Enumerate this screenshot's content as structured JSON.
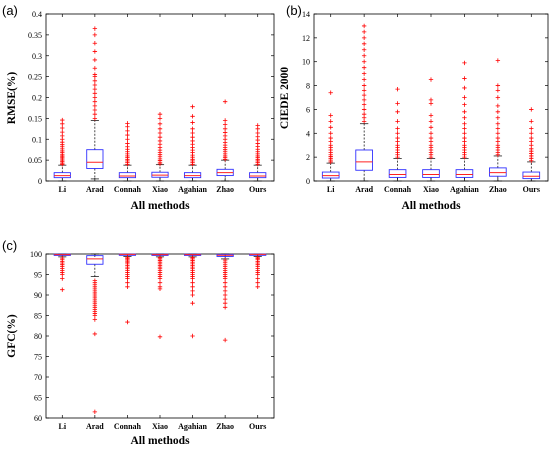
{
  "chart_data": [
    {
      "type": "box",
      "panel_label": "(a)",
      "ylabel": "RMSE(%)",
      "xlabel": "All methods",
      "categories": [
        "Li",
        "Arad",
        "Connah",
        "Xiao",
        "Agahian",
        "Zhao",
        "Ours"
      ],
      "ylim": [
        0,
        0.4
      ],
      "yticks": [
        0,
        0.05,
        0.1,
        0.15,
        0.2,
        0.25,
        0.3,
        0.35,
        0.4
      ],
      "ytick_labels": [
        "0",
        "0.05",
        "0.1",
        "0.15",
        "0.2",
        "0.25",
        "0.3",
        "0.35",
        "0.4"
      ],
      "boxes": [
        {
          "category": "Li",
          "q1": 0.008,
          "median": 0.013,
          "q3": 0.02,
          "whisker_low": 0.0,
          "whisker_high": 0.038,
          "outliers": [
            0.04,
            0.043,
            0.047,
            0.05,
            0.053,
            0.057,
            0.06,
            0.064,
            0.068,
            0.072,
            0.077,
            0.082,
            0.087,
            0.093,
            0.1,
            0.108,
            0.117,
            0.127,
            0.137,
            0.146
          ]
        },
        {
          "category": "Arad",
          "q1": 0.03,
          "median": 0.045,
          "q3": 0.075,
          "whisker_low": 0.005,
          "whisker_high": 0.145,
          "outliers": [
            0.15,
            0.16,
            0.17,
            0.18,
            0.19,
            0.2,
            0.21,
            0.22,
            0.23,
            0.24,
            0.25,
            0.255,
            0.27,
            0.29,
            0.31,
            0.33,
            0.35,
            0.365
          ]
        },
        {
          "category": "Connah",
          "q1": 0.008,
          "median": 0.012,
          "q3": 0.02,
          "whisker_low": 0.0,
          "whisker_high": 0.038,
          "outliers": [
            0.04,
            0.044,
            0.048,
            0.052,
            0.056,
            0.06,
            0.065,
            0.07,
            0.076,
            0.082,
            0.09,
            0.1,
            0.11,
            0.12,
            0.13,
            0.138
          ]
        },
        {
          "category": "Xiao",
          "q1": 0.009,
          "median": 0.014,
          "q3": 0.021,
          "whisker_low": 0.0,
          "whisker_high": 0.039,
          "outliers": [
            0.041,
            0.045,
            0.049,
            0.053,
            0.058,
            0.063,
            0.068,
            0.074,
            0.08,
            0.088,
            0.096,
            0.105,
            0.115,
            0.125,
            0.137,
            0.15,
            0.16
          ]
        },
        {
          "category": "Agahian",
          "q1": 0.008,
          "median": 0.013,
          "q3": 0.02,
          "whisker_low": 0.0,
          "whisker_high": 0.038,
          "outliers": [
            0.04,
            0.044,
            0.048,
            0.052,
            0.057,
            0.062,
            0.068,
            0.074,
            0.08,
            0.088,
            0.096,
            0.105,
            0.115,
            0.125,
            0.14,
            0.155,
            0.178
          ]
        },
        {
          "category": "Zhao",
          "q1": 0.013,
          "median": 0.02,
          "q3": 0.028,
          "whisker_low": 0.0,
          "whisker_high": 0.05,
          "outliers": [
            0.052,
            0.056,
            0.06,
            0.065,
            0.07,
            0.075,
            0.08,
            0.086,
            0.092,
            0.1,
            0.108,
            0.116,
            0.125,
            0.135,
            0.145,
            0.19
          ]
        },
        {
          "category": "Ours",
          "q1": 0.008,
          "median": 0.012,
          "q3": 0.02,
          "whisker_low": 0.0,
          "whisker_high": 0.038,
          "outliers": [
            0.04,
            0.044,
            0.048,
            0.052,
            0.056,
            0.06,
            0.065,
            0.07,
            0.076,
            0.083,
            0.09,
            0.098,
            0.106,
            0.115,
            0.125,
            0.133
          ]
        }
      ]
    },
    {
      "type": "box",
      "panel_label": "(b)",
      "ylabel": "CIEDE 2000",
      "xlabel": "All methods",
      "categories": [
        "Li",
        "Arad",
        "Connah",
        "Xiao",
        "Agahian",
        "Zhao",
        "Ours"
      ],
      "ylim": [
        0,
        14
      ],
      "yticks": [
        0,
        2,
        4,
        6,
        8,
        10,
        12,
        14
      ],
      "ytick_labels": [
        "0",
        "2",
        "4",
        "6",
        "8",
        "10",
        "12",
        "14"
      ],
      "boxes": [
        {
          "category": "Li",
          "q1": 0.25,
          "median": 0.45,
          "q3": 0.75,
          "whisker_low": 0.0,
          "whisker_high": 1.5,
          "outliers": [
            1.6,
            1.75,
            1.9,
            2.05,
            2.2,
            2.4,
            2.6,
            2.8,
            3.0,
            3.3,
            3.6,
            4.0,
            4.5,
            5.0,
            5.5,
            7.4
          ]
        },
        {
          "category": "Arad",
          "q1": 0.9,
          "median": 1.6,
          "q3": 2.6,
          "whisker_low": 0.0,
          "whisker_high": 4.8,
          "outliers": [
            5.0,
            5.3,
            5.6,
            6.0,
            6.4,
            6.8,
            7.2,
            7.6,
            8.0,
            8.5,
            9.0,
            9.5,
            10.0,
            10.5,
            11.0,
            11.5,
            12.0,
            12.5,
            13.0
          ]
        },
        {
          "category": "Connah",
          "q1": 0.3,
          "median": 0.55,
          "q3": 0.95,
          "whisker_low": 0.0,
          "whisker_high": 1.9,
          "outliers": [
            2.0,
            2.2,
            2.4,
            2.6,
            2.8,
            3.0,
            3.3,
            3.6,
            4.0,
            4.4,
            5.0,
            5.8,
            6.5,
            7.7
          ]
        },
        {
          "category": "Xiao",
          "q1": 0.3,
          "median": 0.55,
          "q3": 0.95,
          "whisker_low": 0.0,
          "whisker_high": 1.9,
          "outliers": [
            2.0,
            2.2,
            2.4,
            2.6,
            2.8,
            3.0,
            3.3,
            3.6,
            4.0,
            4.5,
            5.0,
            5.5,
            6.5,
            6.8,
            8.5
          ]
        },
        {
          "category": "Agahian",
          "q1": 0.3,
          "median": 0.55,
          "q3": 0.95,
          "whisker_low": 0.0,
          "whisker_high": 1.9,
          "outliers": [
            2.0,
            2.2,
            2.4,
            2.6,
            2.8,
            3.0,
            3.3,
            3.6,
            4.0,
            4.4,
            4.8,
            5.3,
            5.8,
            6.4,
            7.0,
            7.8,
            8.6,
            9.9
          ]
        },
        {
          "category": "Zhao",
          "q1": 0.4,
          "median": 0.7,
          "q3": 1.1,
          "whisker_low": 0.0,
          "whisker_high": 2.1,
          "outliers": [
            2.2,
            2.4,
            2.6,
            2.8,
            3.0,
            3.3,
            3.6,
            4.0,
            4.4,
            4.8,
            5.3,
            5.8,
            6.3,
            7.0,
            7.6,
            8.0,
            10.1
          ]
        },
        {
          "category": "Ours",
          "q1": 0.2,
          "median": 0.4,
          "q3": 0.75,
          "whisker_low": 0.0,
          "whisker_high": 1.6,
          "outliers": [
            1.7,
            1.9,
            2.1,
            2.3,
            2.5,
            2.7,
            3.0,
            3.3,
            3.6,
            4.0,
            4.4,
            5.0,
            6.0
          ]
        }
      ]
    },
    {
      "type": "box",
      "panel_label": "(c)",
      "ylabel": "GFC(%)",
      "xlabel": "All methods",
      "categories": [
        "Li",
        "Arad",
        "Connah",
        "Xiao",
        "Agahian",
        "Zhao",
        "Ours"
      ],
      "ylim": [
        60,
        100
      ],
      "yticks": [
        60,
        65,
        70,
        75,
        80,
        85,
        90,
        95,
        100
      ],
      "ytick_labels": [
        "60",
        "65",
        "70",
        "75",
        "80",
        "85",
        "90",
        "95",
        "100"
      ],
      "boxes": [
        {
          "category": "Li",
          "q1": 99.7,
          "median": 99.85,
          "q3": 99.95,
          "whisker_low": 99.3,
          "whisker_high": 100,
          "outliers": [
            99.0,
            98.6,
            98.2,
            97.8,
            97.4,
            97.0,
            96.5,
            96.0,
            95.5,
            95.0,
            94.0,
            91.3
          ]
        },
        {
          "category": "Arad",
          "q1": 97.5,
          "median": 98.8,
          "q3": 99.6,
          "whisker_low": 94.5,
          "whisker_high": 100,
          "outliers": [
            93.5,
            93.0,
            92.5,
            92.0,
            91.5,
            91.0,
            90.5,
            90.0,
            89.5,
            89.0,
            88.5,
            88.0,
            87.5,
            87.0,
            86.5,
            86.0,
            85.5,
            85.0,
            84.0,
            80.5,
            61.5
          ]
        },
        {
          "category": "Connah",
          "q1": 99.75,
          "median": 99.9,
          "q3": 99.97,
          "whisker_low": 99.4,
          "whisker_high": 100,
          "outliers": [
            99.2,
            98.9,
            98.6,
            98.3,
            98.0,
            97.6,
            97.2,
            96.8,
            96.4,
            96.0,
            95.5,
            95.0,
            94.5,
            94.0,
            93.0,
            92.0,
            83.4
          ]
        },
        {
          "category": "Xiao",
          "q1": 99.7,
          "median": 99.85,
          "q3": 99.95,
          "whisker_low": 99.3,
          "whisker_high": 100,
          "outliers": [
            99.1,
            98.8,
            98.4,
            98.0,
            97.6,
            97.2,
            96.8,
            96.4,
            96.0,
            95.5,
            95.0,
            94.5,
            94.0,
            93.0,
            92.0,
            91.5,
            79.8
          ]
        },
        {
          "category": "Agahian",
          "q1": 99.7,
          "median": 99.85,
          "q3": 99.95,
          "whisker_low": 99.3,
          "whisker_high": 100,
          "outliers": [
            99.1,
            98.8,
            98.4,
            98.0,
            97.6,
            97.2,
            96.8,
            96.4,
            96.0,
            95.5,
            95.0,
            94.5,
            94.0,
            93.0,
            92.0,
            91.0,
            90.0,
            88.0,
            80.0
          ]
        },
        {
          "category": "Zhao",
          "q1": 99.4,
          "median": 99.7,
          "q3": 99.9,
          "whisker_low": 98.8,
          "whisker_high": 100,
          "outliers": [
            98.5,
            98.0,
            97.5,
            97.0,
            96.5,
            96.0,
            95.5,
            95.0,
            94.5,
            94.0,
            93.0,
            92.0,
            91.0,
            90.0,
            89.0,
            88.0,
            87.0,
            79.0
          ]
        },
        {
          "category": "Ours",
          "q1": 99.75,
          "median": 99.9,
          "q3": 99.97,
          "whisker_low": 99.4,
          "whisker_high": 100,
          "outliers": [
            99.2,
            98.9,
            98.6,
            98.2,
            97.8,
            97.4,
            97.0,
            96.5,
            96.0,
            95.5,
            95.0,
            94.0,
            93.0,
            92.0
          ]
        }
      ]
    }
  ],
  "colors": {
    "box": "#3030ff",
    "median": "#ff2020",
    "whisker": "#000000",
    "outlier": "#ff0000",
    "axis": "#000000"
  }
}
